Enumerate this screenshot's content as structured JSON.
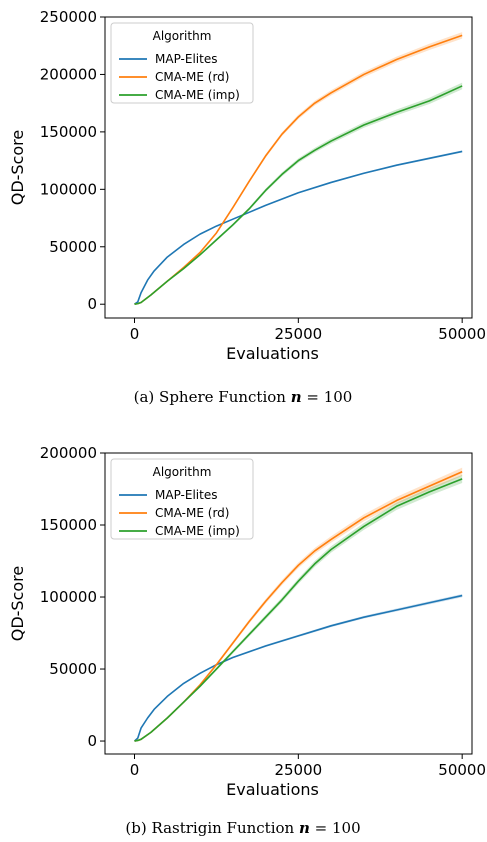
{
  "chart_data": [
    {
      "type": "line",
      "caption": "(a)  Sphere Function n = 100",
      "caption_prefix": "(a)  Sphere Function ",
      "caption_var": "n",
      "caption_suffix": " = 100",
      "xlabel": "Evaluations",
      "ylabel": "QD-Score",
      "xlim": [
        -4500,
        51500
      ],
      "ylim": [
        -12000,
        250000
      ],
      "xticks": [
        0,
        25000,
        50000
      ],
      "yticks": [
        0,
        50000,
        100000,
        150000,
        200000,
        250000
      ],
      "legend_title": "Algorithm",
      "legend_position": "top-left",
      "series": [
        {
          "name": "MAP-Elites",
          "color": "#1f77b4",
          "x": [
            0,
            500,
            1000,
            2000,
            3000,
            5000,
            7500,
            10000,
            12500,
            15000,
            17500,
            20000,
            25000,
            30000,
            35000,
            40000,
            45000,
            50000
          ],
          "y": [
            0,
            2000,
            10000,
            21000,
            29000,
            41000,
            52000,
            61000,
            68000,
            74000,
            80000,
            86000,
            97000,
            106000,
            114000,
            121000,
            127000,
            133000
          ],
          "band": 1000
        },
        {
          "name": "CMA-ME (rd)",
          "color": "#ff7f0e",
          "x": [
            0,
            500,
            1000,
            2500,
            5000,
            7500,
            10000,
            12500,
            15000,
            17500,
            20000,
            22500,
            25000,
            27500,
            30000,
            35000,
            40000,
            45000,
            50000
          ],
          "y": [
            0,
            500,
            1500,
            8000,
            20000,
            32000,
            45000,
            62000,
            84000,
            107000,
            129000,
            148000,
            163000,
            175000,
            184000,
            200000,
            213000,
            224000,
            234000
          ],
          "band": 3000
        },
        {
          "name": "CMA-ME (imp)",
          "color": "#2ca02c",
          "x": [
            0,
            500,
            1000,
            2500,
            5000,
            7500,
            10000,
            12500,
            15000,
            17500,
            20000,
            22500,
            25000,
            27500,
            30000,
            35000,
            40000,
            45000,
            50000
          ],
          "y": [
            0,
            500,
            1500,
            8000,
            20000,
            31000,
            43000,
            56000,
            69000,
            83000,
            99000,
            113000,
            125000,
            134000,
            142000,
            156000,
            167000,
            177000,
            190000
          ],
          "band": 3000
        }
      ]
    },
    {
      "type": "line",
      "caption": "(b)  Rastrigin Function n = 100",
      "caption_prefix": "(b)  Rastrigin Function ",
      "caption_var": "n",
      "caption_suffix": " = 100",
      "xlabel": "Evaluations",
      "ylabel": "QD-Score",
      "xlim": [
        -4500,
        51500
      ],
      "ylim": [
        -9000,
        200000
      ],
      "xticks": [
        0,
        25000,
        50000
      ],
      "yticks": [
        0,
        50000,
        100000,
        150000,
        200000
      ],
      "legend_title": "Algorithm",
      "legend_position": "top-left",
      "series": [
        {
          "name": "MAP-Elites",
          "color": "#1f77b4",
          "x": [
            0,
            500,
            1000,
            2000,
            3000,
            5000,
            7500,
            10000,
            12500,
            15000,
            17500,
            20000,
            25000,
            30000,
            35000,
            40000,
            45000,
            50000
          ],
          "y": [
            0,
            2000,
            9000,
            16000,
            22000,
            31000,
            40000,
            47000,
            53000,
            58000,
            62000,
            66000,
            73000,
            80000,
            86000,
            91000,
            96000,
            101000
          ],
          "band": 1200
        },
        {
          "name": "CMA-ME (rd)",
          "color": "#ff7f0e",
          "x": [
            0,
            500,
            1000,
            2500,
            5000,
            7500,
            10000,
            12500,
            15000,
            17500,
            20000,
            22500,
            25000,
            27500,
            30000,
            35000,
            40000,
            45000,
            50000
          ],
          "y": [
            0,
            400,
            1200,
            6000,
            16000,
            27000,
            39000,
            53000,
            68000,
            83000,
            97000,
            110000,
            122000,
            132000,
            140000,
            155000,
            167000,
            177000,
            187000
          ],
          "band": 3000
        },
        {
          "name": "CMA-ME (imp)",
          "color": "#2ca02c",
          "x": [
            0,
            500,
            1000,
            2500,
            5000,
            7500,
            10000,
            12500,
            15000,
            17500,
            20000,
            22500,
            25000,
            27500,
            30000,
            35000,
            40000,
            45000,
            50000
          ],
          "y": [
            0,
            400,
            1200,
            6000,
            16000,
            27000,
            38000,
            50000,
            62000,
            74000,
            86000,
            98000,
            111000,
            123000,
            133000,
            149000,
            163000,
            173000,
            182000
          ],
          "band": 3000
        }
      ]
    }
  ]
}
